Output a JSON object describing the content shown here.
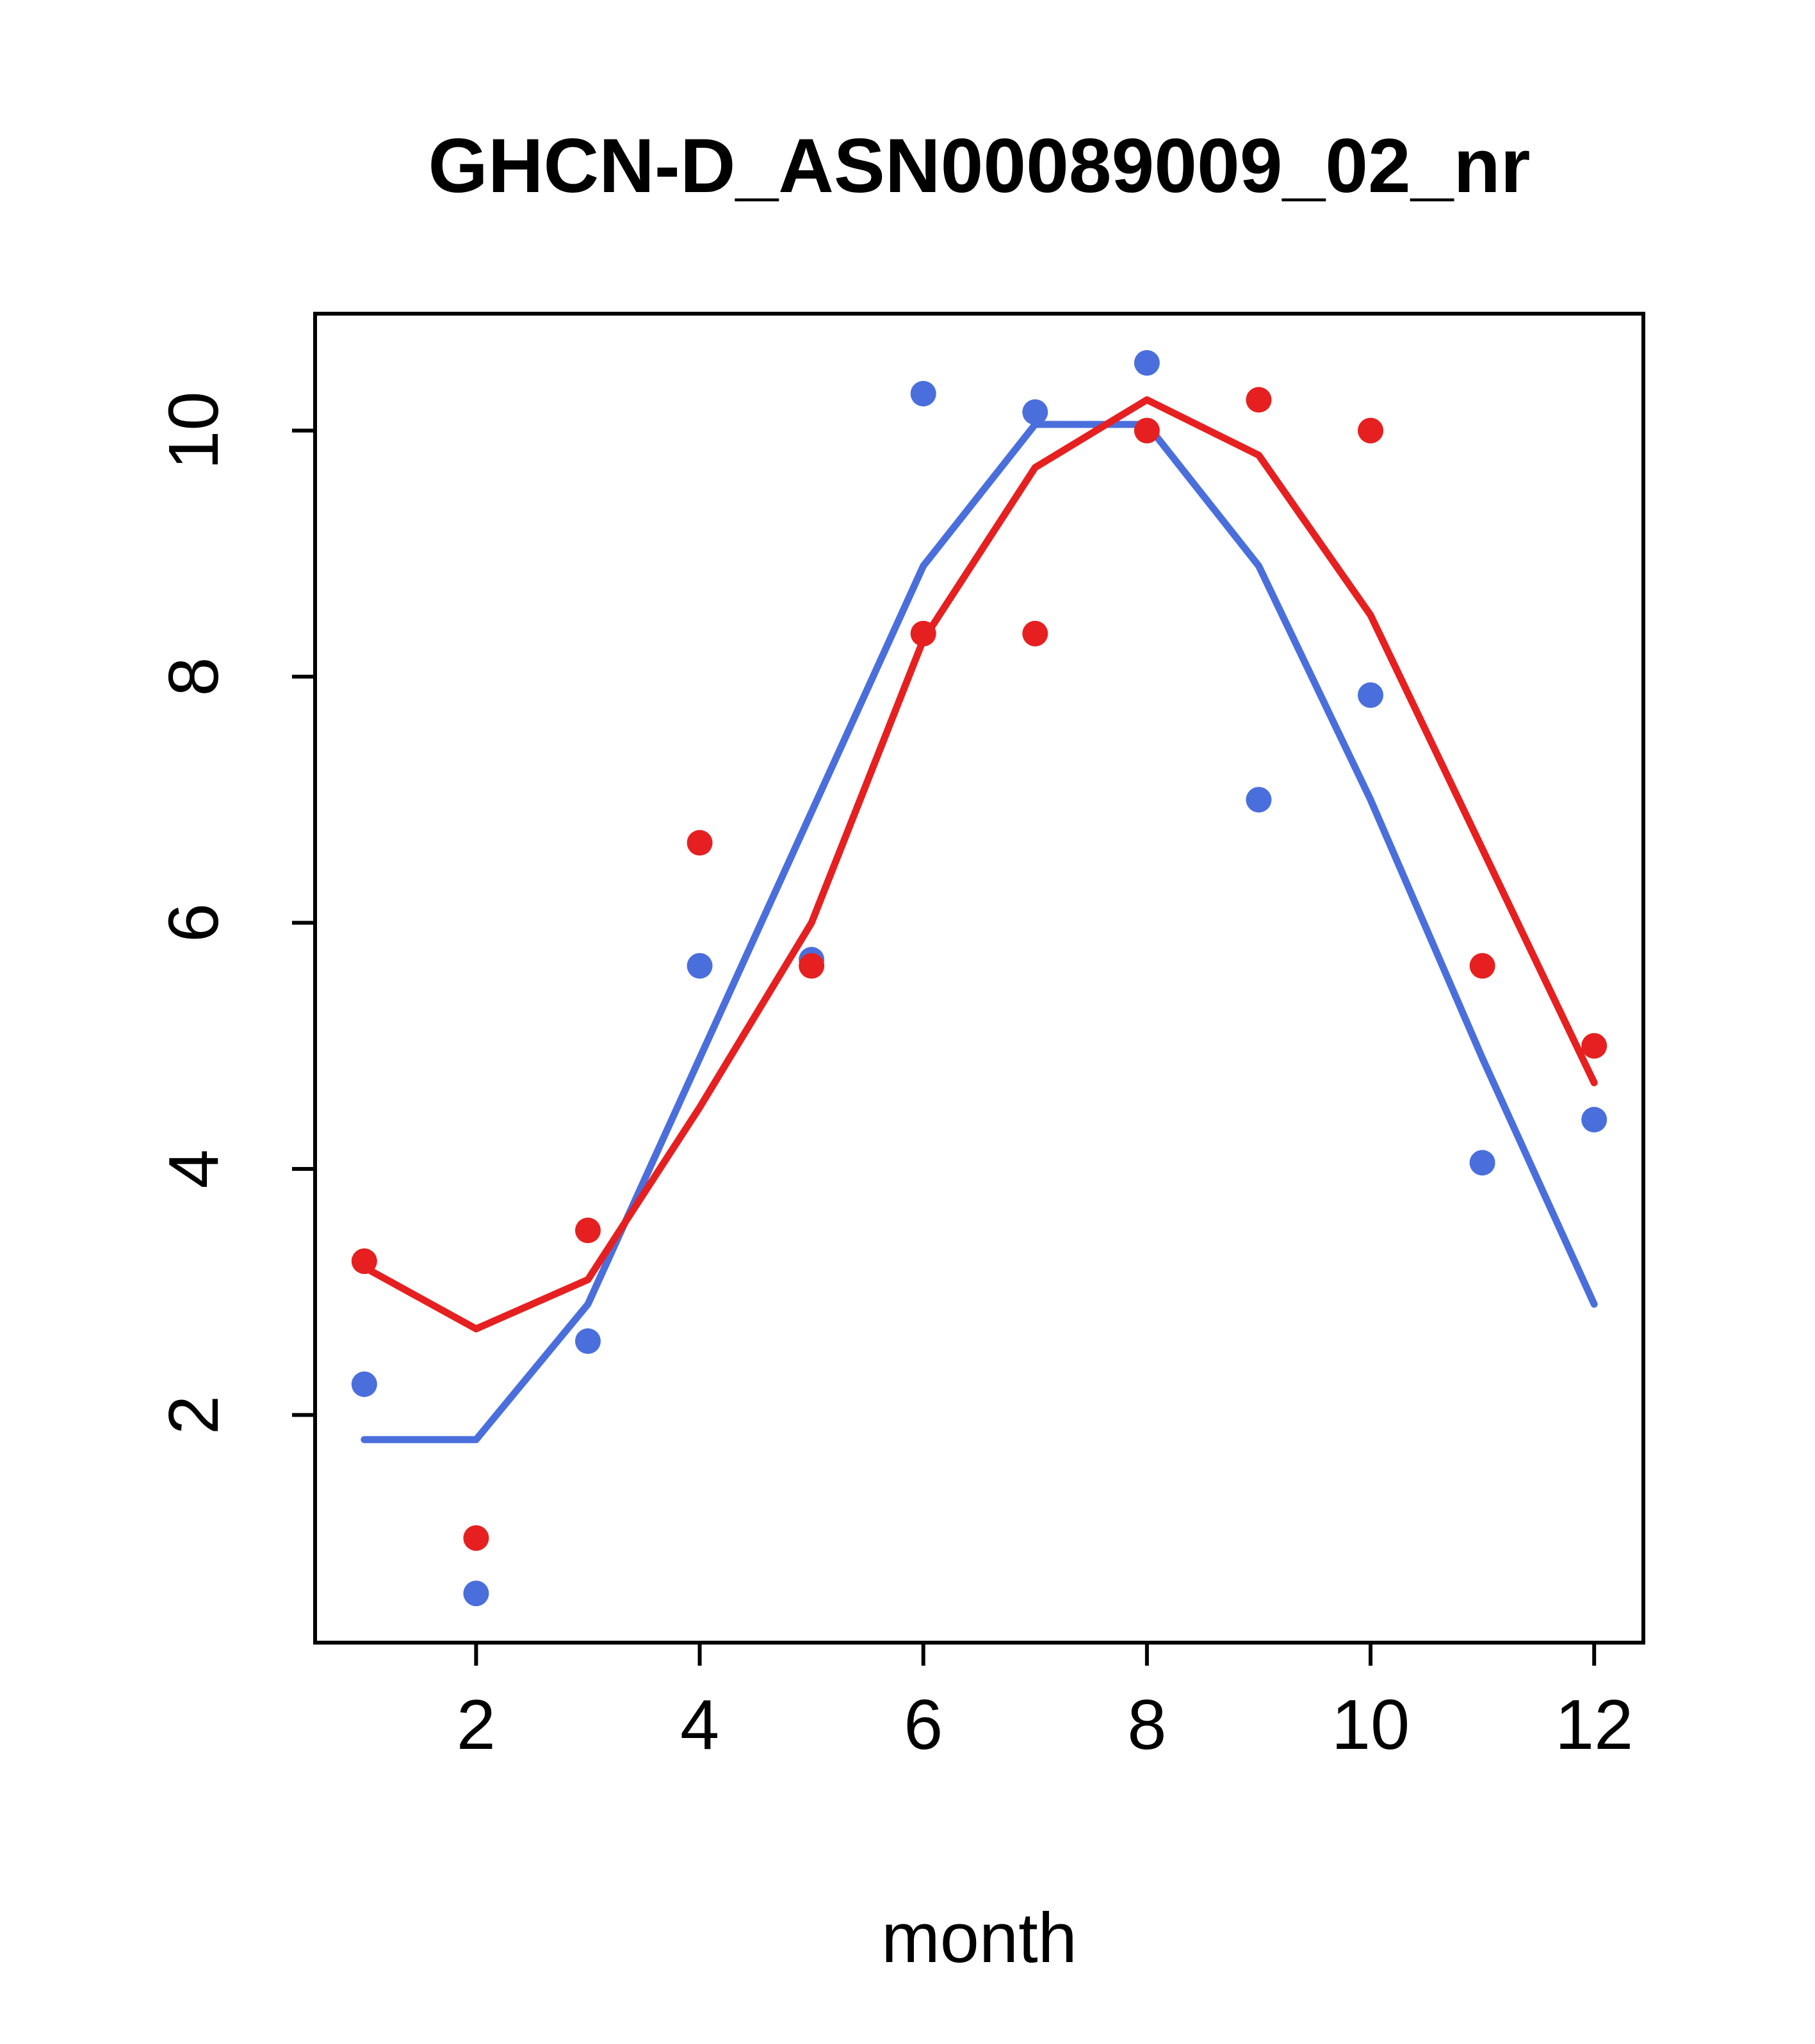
{
  "chart_data": {
    "type": "scatter",
    "title": "GHCN-D_ASN00089009_02_nr",
    "xlabel": "month",
    "ylabel": "",
    "x": [
      1,
      2,
      3,
      4,
      5,
      6,
      7,
      8,
      9,
      10,
      11,
      12
    ],
    "xticks": [
      2,
      4,
      6,
      8,
      10,
      12
    ],
    "yticks": [
      2,
      4,
      6,
      8,
      10
    ],
    "xlim": [
      0.56,
      12.44
    ],
    "ylim": [
      0.15,
      10.95
    ],
    "grid": false,
    "legend": false,
    "colors": {
      "blue": "#4a6fdc",
      "red": "#e62020",
      "axis": "#000000",
      "background": "#ffffff"
    },
    "series": [
      {
        "name": "blue-monthly-points",
        "kind": "points",
        "color": "#4a6fdc",
        "values": [
          2.25,
          0.55,
          2.6,
          5.65,
          5.7,
          10.3,
          10.15,
          10.55,
          7.0,
          7.85,
          4.05,
          4.4
        ]
      },
      {
        "name": "red-monthly-points",
        "kind": "points",
        "color": "#e62020",
        "values": [
          3.25,
          1.0,
          3.5,
          6.65,
          5.65,
          8.35,
          8.35,
          10.0,
          10.25,
          10.0,
          5.65,
          5.0
        ]
      },
      {
        "name": "blue-smoothed-line",
        "kind": "line",
        "color": "#4a6fdc",
        "values": [
          1.8,
          1.8,
          2.9,
          4.9,
          6.9,
          8.9,
          10.05,
          10.05,
          8.9,
          7.0,
          4.9,
          2.9
        ]
      },
      {
        "name": "red-smoothed-line",
        "kind": "line",
        "color": "#e62020",
        "values": [
          3.2,
          2.7,
          3.1,
          4.5,
          6.0,
          8.3,
          9.7,
          10.25,
          9.8,
          8.5,
          6.6,
          4.7
        ]
      }
    ]
  }
}
